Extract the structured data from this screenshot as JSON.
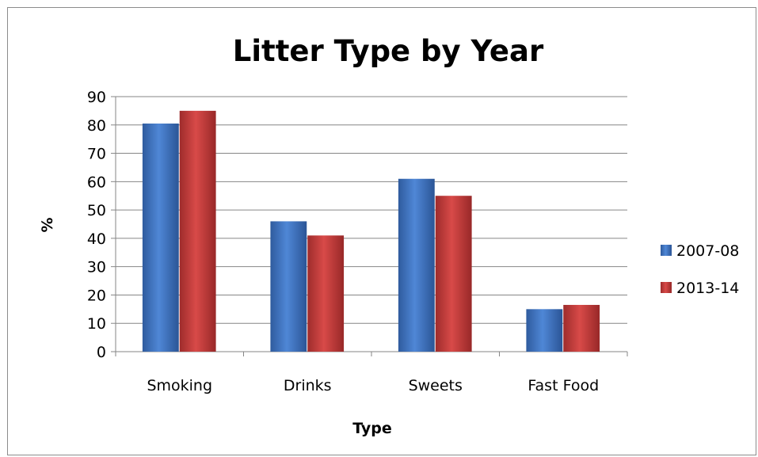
{
  "chart_data": {
    "type": "bar",
    "title": "Litter Type by Year",
    "xlabel": "Type",
    "ylabel": "%",
    "categories": [
      "Smoking",
      "Drinks",
      "Sweets",
      "Fast Food"
    ],
    "series": [
      {
        "name": "2007-08",
        "values": [
          80.5,
          46,
          61,
          15
        ],
        "color": "#3c6fc0"
      },
      {
        "name": "2013-14",
        "values": [
          85,
          41,
          55,
          16.5
        ],
        "color": "#c0393a"
      }
    ],
    "ylim": [
      0,
      90
    ],
    "yticks": [
      "0",
      "10",
      "20",
      "30",
      "40",
      "50",
      "60",
      "70",
      "80",
      "90"
    ],
    "grid": true,
    "legend_position": "right"
  }
}
